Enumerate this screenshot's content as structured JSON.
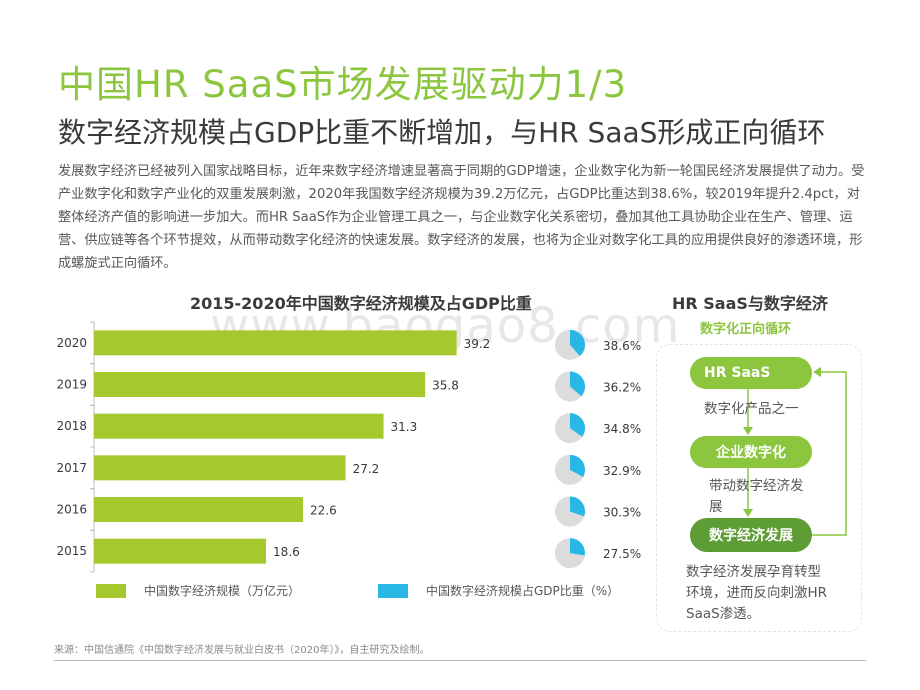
{
  "title": "中国HR SaaS市场发展驱动力1/3",
  "subtitle": "数字经济规模占GDP比重不断增加，与HR SaaS形成正向循环",
  "intro": "发展数字经济已经被列入国家战略目标，近年来数字经济增速显著高于同期的GDP增速，企业数字化为新一轮国民经济发展提供了动力。受产业数字化和数字产业化的双重发展刺激，2020年我国数字经济规模为39.2万亿元，占GDP比重达到38.6%，较2019年提升2.4pct，对整体经济产值的影响进一步加大。而HR SaaS作为企业管理工具之一，与企业数字化关系密切，叠加其他工具协助企业在生产、管理、运营、供应链等各个环节提效，从而带动数字化经济的快速发展。数字经济的发展，也将为企业对数字化工具的应用提供良好的渗透环境，形成螺旋式正向循环。",
  "watermark": "www.baogao8.com",
  "chart_data": {
    "type": "bar",
    "title": "2015-2020年中国数字经济规模及占GDP比重",
    "categories": [
      "2020",
      "2019",
      "2018",
      "2017",
      "2016",
      "2015"
    ],
    "series": [
      {
        "name": "中国数字经济规模（万亿元）",
        "values": [
          39.2,
          35.8,
          31.3,
          27.2,
          22.6,
          18.6
        ],
        "labels": [
          "39.2",
          "35.8",
          "31.3",
          "27.2",
          "22.6",
          "18.6"
        ]
      },
      {
        "name": "中国数字经济规模占GDP比重（%）",
        "values": [
          38.6,
          36.2,
          34.8,
          32.9,
          30.3,
          27.5
        ],
        "labels": [
          "38.6%",
          "36.2%",
          "34.8%",
          "32.9%",
          "30.3%",
          "27.5%"
        ]
      }
    ],
    "xlim": [
      0,
      44
    ],
    "grid": false,
    "legend": "bottom",
    "colors": {
      "bar": "#a5c92d",
      "pie_share": "#29b7e6",
      "pie_rest": "#dcdcdc",
      "axis": "#bfbfbf"
    }
  },
  "side": {
    "title": "HR SaaS与数字经济",
    "subtitle": "数字化正向循环",
    "step1": "HR SaaS",
    "text1": "数字化产品之一",
    "step2": "企业数字化",
    "text2": "带动数字经济发展",
    "step3": "数字经济发展",
    "text3": "数字经济发展孕育转型环境，进而反向刺激HR SaaS渗透。",
    "arrow_color": "#8cc63f"
  },
  "footer": "来源：中国信通院《中国数字经济发展与就业白皮书（2020年）》，自主研究及绘制。"
}
